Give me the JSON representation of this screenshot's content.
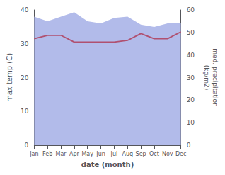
{
  "chart_data": {
    "type": "line",
    "xlabel": "date (month)",
    "ylabel": "max temp (C)",
    "y2label": "med. precipitation\n(kg/m2)",
    "categories": [
      "Jan",
      "Feb",
      "Mar",
      "Apr",
      "May",
      "Jun",
      "Jul",
      "Aug",
      "Sep",
      "Oct",
      "Nov",
      "Dec"
    ],
    "series": [
      {
        "type": "area",
        "axis": "y2",
        "color": "#aab4e8",
        "values": [
          57.0,
          55.0,
          57.0,
          59.0,
          55.0,
          54.0,
          56.5,
          57.0,
          53.5,
          52.5,
          54.0,
          54.0
        ]
      },
      {
        "type": "line",
        "color": "#b05070",
        "values": [
          31.5,
          32.5,
          32.5,
          30.5,
          30.5,
          30.5,
          30.5,
          31.0,
          33.0,
          31.5,
          31.5,
          33.5
        ]
      }
    ],
    "ylim": [
      0,
      40
    ],
    "yticks": [
      0,
      10,
      20,
      30,
      40
    ],
    "y2lim": [
      0,
      60
    ],
    "y2ticks": [
      0,
      10,
      20,
      30,
      40,
      50,
      60
    ],
    "grid": false
  }
}
